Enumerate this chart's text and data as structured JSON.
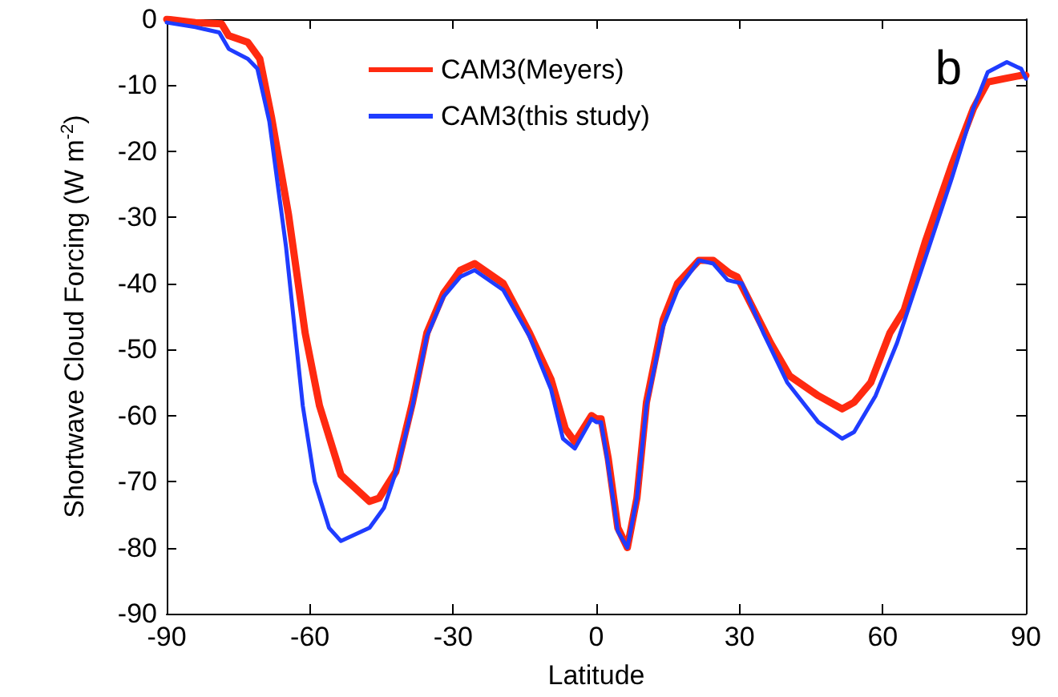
{
  "chart_data": {
    "type": "line",
    "xlabel": "Latitude",
    "ylabel": "Shortwave Cloud Forcing (W m$^{-2}$)",
    "annotations": [
      "b"
    ],
    "xlim": [
      -90,
      90
    ],
    "xticks": [
      -90,
      -60,
      -30,
      0,
      30,
      60,
      90
    ],
    "ylim": [
      -90,
      0
    ],
    "yticks": [
      0,
      -10,
      -20,
      -30,
      -40,
      -50,
      -60,
      -70,
      -80,
      -90
    ],
    "grid": false,
    "legend": "top",
    "marker": "none",
    "line_style": "solid",
    "series": [
      {
        "name": "CAM3(Meyers)",
        "color": "#ff2a10",
        "x": [
          -90,
          -84,
          -78.5,
          -77,
          -73,
          -70.5,
          -68,
          -64.5,
          -61,
          -58,
          -53.5,
          -47.5,
          -45.5,
          -42,
          -38.5,
          -35.5,
          -32,
          -28.5,
          -25.5,
          -19.5,
          -14,
          -9.5,
          -6.5,
          -4.5,
          -1,
          0,
          1,
          2.5,
          4.5,
          6.5,
          8.5,
          10.5,
          14,
          17,
          21.5,
          24.5,
          28,
          29.5,
          33,
          36.5,
          40.5,
          46.5,
          51.5,
          54,
          57.5,
          61.5,
          64.5,
          69,
          74.5,
          79,
          82,
          85.5,
          89,
          90
        ],
        "values": [
          0,
          -0.5,
          -0.7,
          -2.5,
          -3.5,
          -6,
          -15,
          -29.5,
          -47.5,
          -58.5,
          -69,
          -73,
          -72.5,
          -68.5,
          -58,
          -47.5,
          -41.5,
          -38,
          -37,
          -40,
          -47.5,
          -54.5,
          -62,
          -64,
          -60,
          -60.5,
          -60.5,
          -66.5,
          -77,
          -80,
          -72.5,
          -58,
          -45.5,
          -40,
          -36.5,
          -36.5,
          -38.5,
          -39,
          -44,
          -49,
          -54,
          -57,
          -59,
          -58,
          -55,
          -47.5,
          -44,
          -33.5,
          -22,
          -13.5,
          -9.5,
          -9,
          -8.5,
          -8.5
        ]
      },
      {
        "name": "CAM3(this study)",
        "color": "#1f3cff",
        "x": [
          -90,
          -84,
          -79,
          -77,
          -73,
          -71,
          -68.5,
          -65,
          -61.5,
          -59,
          -56,
          -53.5,
          -47.5,
          -44.5,
          -41.5,
          -38.5,
          -35.5,
          -32,
          -28.5,
          -25.5,
          -19.5,
          -14,
          -9.5,
          -7,
          -4.5,
          -1,
          0,
          1,
          2.5,
          4.5,
          6.5,
          8.5,
          10.5,
          14,
          17,
          21.5,
          24.5,
          27.5,
          30.5,
          35,
          40,
          46.5,
          51.5,
          54,
          58.5,
          63,
          69,
          74.5,
          79,
          82,
          86,
          89,
          90
        ],
        "values": [
          -0.5,
          -1.2,
          -2,
          -4.5,
          -6,
          -7.5,
          -15.5,
          -34.5,
          -58.5,
          -70,
          -77,
          -79,
          -77,
          -74,
          -67.5,
          -58.5,
          -48,
          -42,
          -39,
          -38,
          -41,
          -48,
          -56,
          -63.5,
          -65,
          -60.5,
          -61,
          -61,
          -67.5,
          -77.5,
          -80,
          -72.5,
          -58.5,
          -46.5,
          -41,
          -36.5,
          -37,
          -39.5,
          -40,
          -47.5,
          -55,
          -61,
          -63.5,
          -62.5,
          -57,
          -49,
          -36,
          -24,
          -13.5,
          -8,
          -6.5,
          -7.5,
          -9
        ]
      }
    ]
  }
}
